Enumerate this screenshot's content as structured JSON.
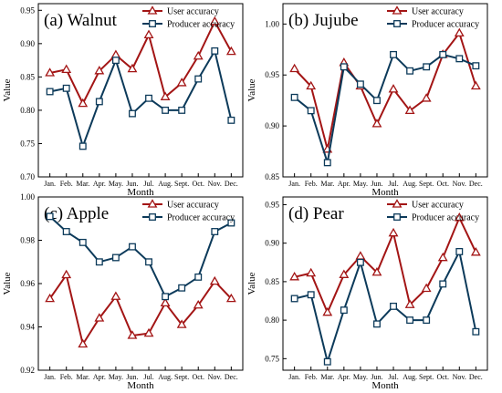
{
  "colors": {
    "user": "#a31515",
    "producer": "#0c3a5a"
  },
  "charts": [
    {
      "xlabel": "Month",
      "ylabel": "Value"
    }
  ],
  "chart_data": [
    {
      "type": "line",
      "title": "(a) Walnut",
      "xlabel": "Month",
      "ylabel": "Value",
      "categories": [
        "Jan.",
        "Feb.",
        "Mar.",
        "Apr.",
        "May.",
        "Jun.",
        "Jul.",
        "Aug.",
        "Sept.",
        "Oct.",
        "Nov.",
        "Dec."
      ],
      "ylim": [
        0.7,
        0.96
      ],
      "yticks": [
        "0.70",
        "0.75",
        "0.80",
        "0.85",
        "0.90",
        "0.95"
      ],
      "legend": "top-right",
      "series": [
        {
          "name": "User accuracy",
          "marker": "triangle",
          "values": [
            0.856,
            0.861,
            0.81,
            0.859,
            0.883,
            0.862,
            0.913,
            0.82,
            0.841,
            0.881,
            0.933,
            0.888
          ]
        },
        {
          "name": "Producer accuracy",
          "marker": "square",
          "values": [
            0.828,
            0.833,
            0.746,
            0.813,
            0.875,
            0.795,
            0.818,
            0.8,
            0.8,
            0.847,
            0.889,
            0.785
          ]
        }
      ]
    },
    {
      "type": "line",
      "title": "(b) Jujube",
      "xlabel": "Month",
      "ylabel": "Value",
      "categories": [
        "Jan.",
        "Feb.",
        "Mar.",
        "Apr.",
        "May.",
        "Jun.",
        "Jul.",
        "Aug.",
        "Sept.",
        "Oct.",
        "Nov.",
        "Dec."
      ],
      "ylim": [
        0.85,
        1.02
      ],
      "yticks": [
        "0.85",
        "0.90",
        "0.95",
        "1.00"
      ],
      "legend": "top-right",
      "series": [
        {
          "name": "User accuracy",
          "marker": "triangle",
          "values": [
            0.956,
            0.939,
            0.877,
            0.962,
            0.939,
            0.902,
            0.936,
            0.915,
            0.927,
            0.97,
            0.991,
            0.939
          ]
        },
        {
          "name": "Producer accuracy",
          "marker": "square",
          "values": [
            0.928,
            0.915,
            0.864,
            0.958,
            0.941,
            0.925,
            0.97,
            0.954,
            0.958,
            0.97,
            0.966,
            0.959
          ]
        }
      ]
    },
    {
      "type": "line",
      "title": "(c) Apple",
      "xlabel": "Month",
      "ylabel": "Value",
      "categories": [
        "Jan.",
        "Feb.",
        "Mar.",
        "Apr.",
        "May.",
        "Jun.",
        "Jul.",
        "Aug.",
        "Sept.",
        "Oct.",
        "Nov.",
        "Dec."
      ],
      "ylim": [
        0.92,
        1.0
      ],
      "yticks": [
        "0.92",
        "0.94",
        "0.96",
        "0.98",
        "1.00"
      ],
      "legend": "top-right",
      "series": [
        {
          "name": "User accuracy",
          "marker": "triangle",
          "values": [
            0.953,
            0.964,
            0.932,
            0.944,
            0.954,
            0.936,
            0.937,
            0.951,
            0.941,
            0.95,
            0.961,
            0.953
          ]
        },
        {
          "name": "Producer accuracy",
          "marker": "square",
          "values": [
            0.991,
            0.984,
            0.979,
            0.97,
            0.972,
            0.977,
            0.97,
            0.954,
            0.958,
            0.963,
            0.984,
            0.988
          ]
        }
      ]
    },
    {
      "type": "line",
      "title": "(d) Pear",
      "xlabel": "Month",
      "ylabel": "Value",
      "categories": [
        "Jan.",
        "Feb.",
        "Mar.",
        "Apr.",
        "May.",
        "Jun.",
        "Jul.",
        "Aug.",
        "Sept.",
        "Oct.",
        "Nov.",
        "Dec."
      ],
      "ylim": [
        0.735,
        0.96
      ],
      "yticks": [
        "0.75",
        "0.80",
        "0.85",
        "0.90",
        "0.95"
      ],
      "legend": "top-right",
      "series": [
        {
          "name": "User accuracy",
          "marker": "triangle",
          "values": [
            0.856,
            0.861,
            0.81,
            0.859,
            0.883,
            0.862,
            0.913,
            0.82,
            0.841,
            0.881,
            0.933,
            0.888
          ]
        },
        {
          "name": "Producer accuracy",
          "marker": "square",
          "values": [
            0.828,
            0.833,
            0.746,
            0.813,
            0.875,
            0.795,
            0.818,
            0.8,
            0.8,
            0.847,
            0.889,
            0.785
          ]
        }
      ]
    }
  ]
}
